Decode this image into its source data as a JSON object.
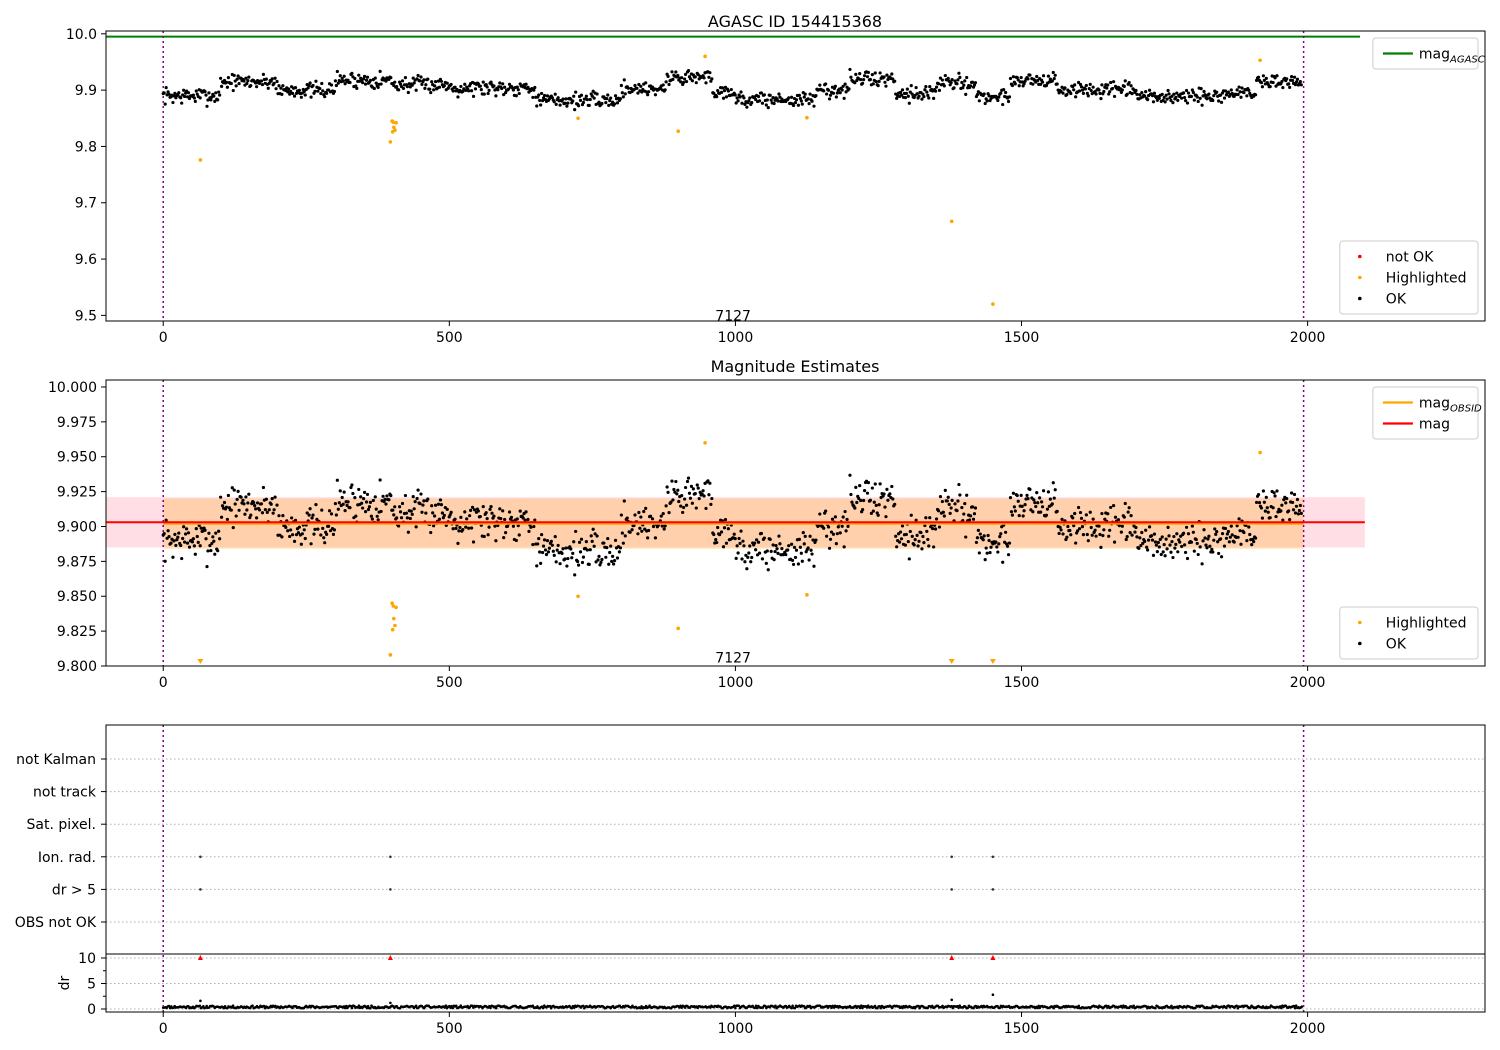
{
  "chart_data": [
    {
      "type": "scatter",
      "title": "AGASC ID 154415368",
      "xlim": [
        -100,
        2310
      ],
      "ylim": [
        9.49,
        10.005
      ],
      "xticks": [
        0,
        500,
        1000,
        1500,
        2000
      ],
      "yticks": [
        9.5,
        9.6,
        9.7,
        9.8,
        9.9,
        10.0
      ],
      "ytick_labels": [
        "9.5",
        "9.6",
        "9.7",
        "9.8",
        "9.9",
        "10.0"
      ],
      "obs_bounds": [
        0,
        1993
      ],
      "obsid_label": {
        "text": "7127",
        "x": 996,
        "y": 9.5
      },
      "mag_agasc": 9.995,
      "ok_series": {
        "name": "OK",
        "color": "#000000",
        "x_start": 0,
        "x_end": 1990,
        "x_step": 1.7,
        "seed": 7
      },
      "baseline_segments": [
        {
          "x0": 0,
          "x1": 100,
          "mean": 9.89,
          "amp": 0.022
        },
        {
          "x0": 100,
          "x1": 200,
          "mean": 9.915,
          "amp": 0.02
        },
        {
          "x0": 200,
          "x1": 300,
          "mean": 9.9,
          "amp": 0.02
        },
        {
          "x0": 300,
          "x1": 400,
          "mean": 9.918,
          "amp": 0.022
        },
        {
          "x0": 400,
          "x1": 500,
          "mean": 9.91,
          "amp": 0.02
        },
        {
          "x0": 500,
          "x1": 650,
          "mean": 9.905,
          "amp": 0.022
        },
        {
          "x0": 650,
          "x1": 800,
          "mean": 9.882,
          "amp": 0.02
        },
        {
          "x0": 800,
          "x1": 880,
          "mean": 9.903,
          "amp": 0.02
        },
        {
          "x0": 880,
          "x1": 960,
          "mean": 9.923,
          "amp": 0.022
        },
        {
          "x0": 960,
          "x1": 1000,
          "mean": 9.898,
          "amp": 0.02
        },
        {
          "x0": 1000,
          "x1": 1140,
          "mean": 9.883,
          "amp": 0.02
        },
        {
          "x0": 1140,
          "x1": 1200,
          "mean": 9.9,
          "amp": 0.02
        },
        {
          "x0": 1200,
          "x1": 1280,
          "mean": 9.92,
          "amp": 0.022
        },
        {
          "x0": 1280,
          "x1": 1350,
          "mean": 9.895,
          "amp": 0.02
        },
        {
          "x0": 1350,
          "x1": 1420,
          "mean": 9.912,
          "amp": 0.022
        },
        {
          "x0": 1420,
          "x1": 1480,
          "mean": 9.888,
          "amp": 0.02
        },
        {
          "x0": 1480,
          "x1": 1560,
          "mean": 9.918,
          "amp": 0.02
        },
        {
          "x0": 1560,
          "x1": 1700,
          "mean": 9.9,
          "amp": 0.02
        },
        {
          "x0": 1700,
          "x1": 1850,
          "mean": 9.888,
          "amp": 0.02
        },
        {
          "x0": 1850,
          "x1": 1910,
          "mean": 9.895,
          "amp": 0.02
        },
        {
          "x0": 1910,
          "x1": 1995,
          "mean": 9.915,
          "amp": 0.022
        }
      ],
      "highlighted_series": {
        "name": "Highlighted",
        "color": "#ffa500",
        "points": [
          [
            65,
            9.776
          ],
          [
            397,
            9.808
          ],
          [
            400,
            9.845
          ],
          [
            401,
            9.826
          ],
          [
            402,
            9.843
          ],
          [
            403,
            9.834
          ],
          [
            405,
            9.829
          ],
          [
            407,
            9.842
          ],
          [
            725,
            9.85
          ],
          [
            900,
            9.827
          ],
          [
            947,
            9.96
          ],
          [
            1125,
            9.851
          ],
          [
            1378,
            9.667
          ],
          [
            1450,
            9.52
          ],
          [
            1917,
            9.953
          ]
        ]
      },
      "legends": [
        {
          "placement": "top-right",
          "entries": [
            {
              "label_main": "mag",
              "label_sub": "AGASC",
              "kind": "line",
              "color": "#008000"
            }
          ]
        },
        {
          "placement": "bottom-right",
          "entries": [
            {
              "label_main": "not OK",
              "kind": "marker",
              "color": "#ff0000"
            },
            {
              "label_main": "Highlighted",
              "kind": "marker",
              "color": "#ffa500"
            },
            {
              "label_main": "OK",
              "kind": "marker",
              "color": "#000000"
            }
          ]
        }
      ]
    },
    {
      "type": "scatter",
      "title": "Magnitude Estimates",
      "xlim": [
        -100,
        2310
      ],
      "ylim": [
        9.8,
        10.005
      ],
      "xticks": [
        0,
        500,
        1000,
        1500,
        2000
      ],
      "yticks": [
        9.8,
        9.825,
        9.85,
        9.875,
        9.9,
        9.925,
        9.95,
        9.975,
        10.0
      ],
      "ytick_labels": [
        "9.800",
        "9.825",
        "9.850",
        "9.875",
        "9.900",
        "9.925",
        "9.950",
        "9.975",
        "10.000"
      ],
      "obs_bounds": [
        0,
        1993
      ],
      "obsid_label": {
        "text": "7127",
        "x": 996,
        "y": 9.806
      },
      "mag_obsid": {
        "value": 9.902,
        "x0": 0,
        "x1": 1993,
        "band": [
          9.884,
          9.92
        ],
        "color": "#ffa500"
      },
      "mag": {
        "value": 9.903,
        "x0": -100,
        "x1": 2100,
        "band": [
          9.885,
          9.921
        ],
        "color": "#ff0000"
      },
      "highlighted_series": {
        "name": "Highlighted",
        "color": "#ffa500",
        "points": [
          [
            397,
            9.808
          ],
          [
            400,
            9.845
          ],
          [
            401,
            9.826
          ],
          [
            402,
            9.843
          ],
          [
            403,
            9.834
          ],
          [
            405,
            9.829
          ],
          [
            407,
            9.842
          ],
          [
            725,
            9.85
          ],
          [
            900,
            9.827
          ],
          [
            947,
            9.96
          ],
          [
            1125,
            9.851
          ],
          [
            1917,
            9.953
          ]
        ],
        "below_range": [
          65,
          1378,
          1450
        ]
      },
      "legends": [
        {
          "placement": "top-right",
          "entries": [
            {
              "label_main": "mag",
              "label_sub": "OBSID",
              "kind": "line",
              "color": "#ffa500"
            },
            {
              "label_main": "mag",
              "kind": "line",
              "color": "#ff0000"
            }
          ]
        },
        {
          "placement": "bottom-right",
          "entries": [
            {
              "label_main": "Highlighted",
              "kind": "marker",
              "color": "#ffa500"
            },
            {
              "label_main": "OK",
              "kind": "marker",
              "color": "#000000"
            }
          ]
        }
      ]
    },
    {
      "type": "scatter",
      "title": "",
      "xlim": [
        -100,
        2310
      ],
      "xticks": [
        0,
        500,
        1000,
        1500,
        2000
      ],
      "obs_bounds": [
        0,
        1993
      ],
      "flag_categories": [
        "not Kalman",
        "not track",
        "Sat. pixel.",
        "Ion. rad.",
        "dr > 5",
        "OBS not OK"
      ],
      "flag_points": {
        "Ion. rad.": [
          65,
          397,
          1378,
          1450
        ],
        "dr > 5": [
          65,
          397,
          1378,
          1450
        ]
      },
      "dr": {
        "ylabel": "dr",
        "ylim": [
          -0.5,
          10.5
        ],
        "yticks": [
          0,
          5,
          10
        ],
        "x_start": 0,
        "x_end": 1990,
        "x_step": 2,
        "typical": 0.4,
        "spikes": [
          [
            65,
            1.6
          ],
          [
            397,
            1.2
          ],
          [
            1378,
            1.8
          ],
          [
            1450,
            2.8
          ]
        ],
        "clipped_points": [
          65,
          397,
          1378,
          1450
        ],
        "clip_value": 10,
        "clip_color": "#ff0000"
      }
    }
  ]
}
